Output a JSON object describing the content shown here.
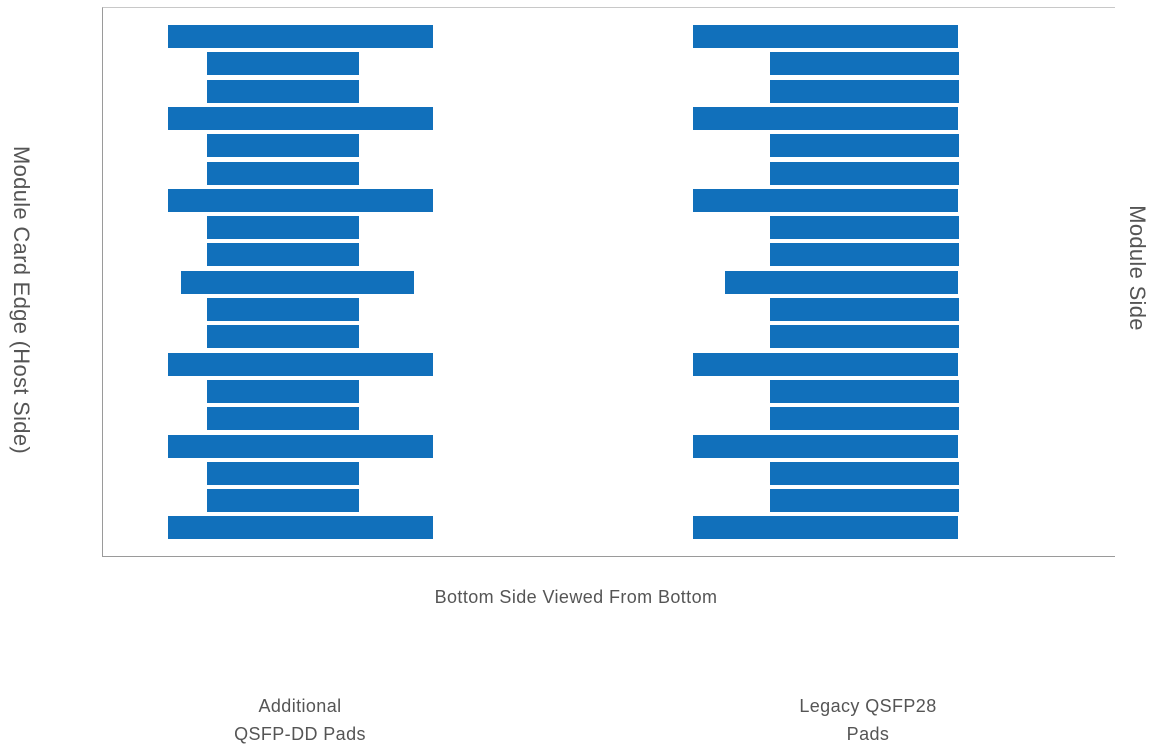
{
  "labels": {
    "left_side": "Module Card Edge (Host Side)",
    "right_side": "Module Side",
    "bottom": "Bottom Side Viewed From Bottom",
    "group_left_line1": "Additional",
    "group_left_line2": "QSFP-DD Pads",
    "group_right_line1": "Legacy QSFP28",
    "group_right_line2": "Pads"
  },
  "colors": {
    "pad": "#1170bb",
    "pad_border": "#ffffff",
    "frame": "#9a9a9a"
  },
  "pad_groups": [
    {
      "name": "additional-qsfp-dd-pads",
      "pads": [
        "long",
        "short",
        "short",
        "long",
        "short",
        "short",
        "long",
        "short",
        "short",
        "medium",
        "short",
        "short",
        "long",
        "short",
        "short",
        "long",
        "short",
        "short",
        "long"
      ]
    },
    {
      "name": "legacy-qsfp28-pads",
      "pads": [
        "long",
        "short",
        "short",
        "long",
        "short",
        "short",
        "long",
        "short",
        "short",
        "medium",
        "short",
        "short",
        "long",
        "short",
        "short",
        "long",
        "short",
        "short",
        "long"
      ]
    }
  ]
}
